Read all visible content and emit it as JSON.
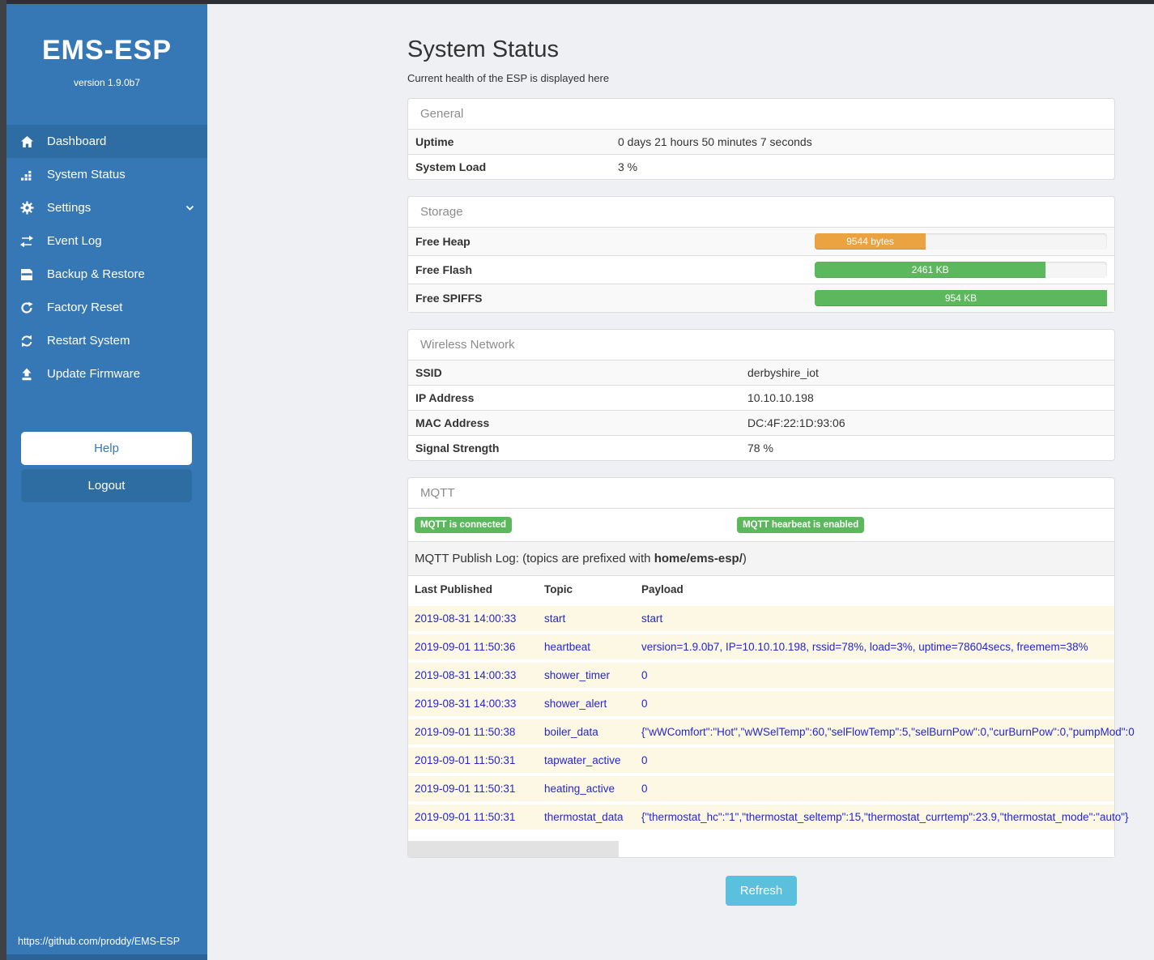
{
  "app": {
    "brand": "EMS-ESP",
    "version": "version 1.9.0b7",
    "footer_link": "https://github.com/proddy/EMS-ESP"
  },
  "sidebar": {
    "items": [
      {
        "label": "Dashboard"
      },
      {
        "label": "System Status"
      },
      {
        "label": "Settings"
      },
      {
        "label": "Event Log"
      },
      {
        "label": "Backup & Restore"
      },
      {
        "label": "Factory Reset"
      },
      {
        "label": "Restart System"
      },
      {
        "label": "Update Firmware"
      }
    ],
    "help_label": "Help",
    "logout_label": "Logout"
  },
  "page": {
    "title": "System Status",
    "subtitle": "Current health of the ESP is displayed here"
  },
  "general": {
    "heading": "General",
    "rows": [
      [
        "Uptime",
        "0 days 21 hours 50 minutes 7 seconds"
      ],
      [
        "System Load",
        "3 %"
      ]
    ]
  },
  "storage": {
    "heading": "Storage",
    "rows": [
      {
        "label": "Free Heap",
        "value": "9544 bytes",
        "percent": 38,
        "color": "#eba240"
      },
      {
        "label": "Free Flash",
        "value": "2461 KB",
        "percent": 79,
        "color": "#5cb85c"
      },
      {
        "label": "Free SPIFFS",
        "value": "954 KB",
        "percent": 100,
        "color": "#5cb85c"
      }
    ]
  },
  "wireless": {
    "heading": "Wireless Network",
    "rows": [
      [
        "SSID",
        "derbyshire_iot"
      ],
      [
        "IP Address",
        "10.10.10.198"
      ],
      [
        "MAC Address",
        "DC:4F:22:1D:93:06"
      ],
      [
        "Signal Strength",
        "78 %"
      ]
    ]
  },
  "mqtt": {
    "heading": "MQTT",
    "badges": [
      "MQTT is connected",
      "MQTT hearbeat is enabled"
    ],
    "log_title_prefix": "MQTT Publish Log: (topics are prefixed with ",
    "log_title_bold": "home/ems-esp/",
    "log_title_suffix": ")",
    "columns": [
      "Last Published",
      "Topic",
      "Payload"
    ],
    "rows": [
      [
        "2019-08-31 14:00:33",
        "start",
        "start"
      ],
      [
        "2019-09-01 11:50:36",
        "heartbeat",
        "version=1.9.0b7, IP=10.10.10.198, rssid=78%, load=3%, uptime=78604secs, freemem=38%"
      ],
      [
        "2019-08-31 14:00:33",
        "shower_timer",
        "0"
      ],
      [
        "2019-08-31 14:00:33",
        "shower_alert",
        "0"
      ],
      [
        "2019-09-01 11:50:38",
        "boiler_data",
        "{\"wWComfort\":\"Hot\",\"wWSelTemp\":60,\"selFlowTemp\":5,\"selBurnPow\":0,\"curBurnPow\":0,\"pumpMod\":0"
      ],
      [
        "2019-09-01 11:50:31",
        "tapwater_active",
        "0"
      ],
      [
        "2019-09-01 11:50:31",
        "heating_active",
        "0"
      ],
      [
        "2019-09-01 11:50:31",
        "thermostat_data",
        "{\"thermostat_hc\":\"1\",\"thermostat_seltemp\":15,\"thermostat_currtemp\":23.9,\"thermostat_mode\":\"auto\"}"
      ]
    ]
  },
  "actions": {
    "refresh_label": "Refresh"
  },
  "colors": {
    "sidebar": "#3578b5",
    "sidebar_active": "#2d6da3",
    "badge_green": "#5cb85c",
    "bar_orange": "#eba240",
    "bar_green": "#5cb85c",
    "refresh_blue": "#5bc0de",
    "log_row_bg": "#fcf8e3",
    "log_text_blue": "#2525d8"
  }
}
